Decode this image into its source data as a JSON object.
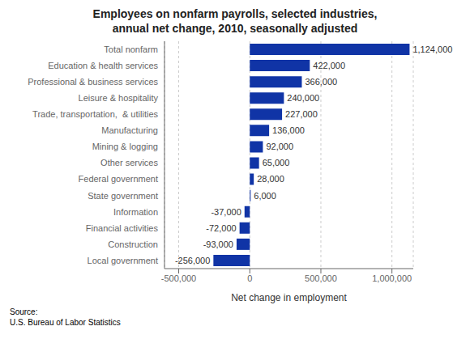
{
  "chart_data": {
    "type": "bar",
    "orientation": "horizontal",
    "title": "Employees on nonfarm payrolls, selected industries,\nannual net change, 2010, seasonally adjusted",
    "categories": [
      "Local government",
      "Construction",
      "Financial activities",
      "Information",
      "State government",
      "Federal government",
      "Other services",
      "Mining & logging",
      "Manufacturing",
      "Trade, transportation,  & utilities",
      "Leisure & hospitality",
      "Professional & business services",
      "Education & health services",
      "Total nonfarm"
    ],
    "values": [
      -256000,
      -93000,
      -72000,
      -37000,
      6000,
      28000,
      65000,
      92000,
      136000,
      227000,
      240000,
      366000,
      422000,
      1124000
    ],
    "value_labels": [
      "-256,000",
      "-93,000",
      "-72,000",
      "-37,000",
      "6,000",
      "28,000",
      "65,000",
      "92,000",
      "136,000",
      "227,000",
      "240,000",
      "366,000",
      "422,000",
      "1,124,000"
    ],
    "data_labels": true,
    "color": "#1034a6",
    "xlabel": "Net change in employment",
    "xlim": [
      -600000,
      1150000
    ],
    "xticks": [
      {
        "value": -500000,
        "label": "-500,000"
      },
      0,
      {
        "value": 500000,
        "label": "500,000"
      },
      {
        "value": 1000000,
        "label": "1,000,000"
      }
    ],
    "grid": true,
    "annotations": [
      "Source:",
      "U.S. Bureau of Labor Statistics"
    ]
  }
}
